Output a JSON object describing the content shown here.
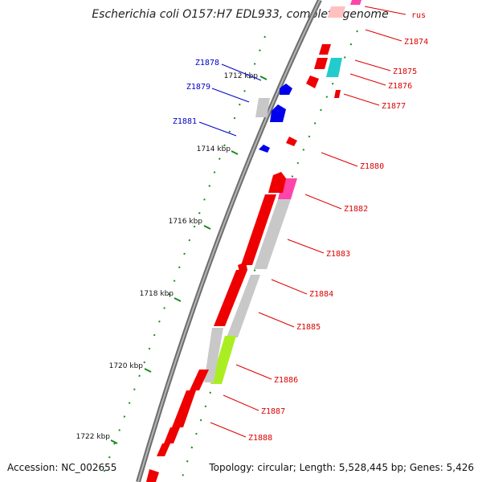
{
  "title": "Escherichia coli O157:H7 EDL933, complete genome",
  "footer": {
    "accession": "Accession: NC_002655",
    "topology": "Topology: circular; Length: 5,528,445 bp; Genes: 5,426"
  },
  "colors": {
    "backbone": "#808080",
    "tick": "#1a8a1a",
    "gene_red": "#ee0000",
    "gene_blue": "#0000ee",
    "gene_gray": "#c8c8c8",
    "gene_pink": "#ff44aa",
    "gene_cyan": "#22cccc",
    "gene_lime": "#aaee22",
    "label_red": "#dd0000",
    "label_blue": "#0000cc"
  },
  "ticks": [
    {
      "label": "1712 kbp"
    },
    {
      "label": "1714 kbp"
    },
    {
      "label": "1716 kbp"
    },
    {
      "label": "1718 kbp"
    },
    {
      "label": "1720 kbp"
    },
    {
      "label": "1722 kbp"
    }
  ],
  "genes_right": [
    {
      "label": "rus"
    },
    {
      "label": "Z1874"
    },
    {
      "label": "Z1875"
    },
    {
      "label": "Z1876"
    },
    {
      "label": "Z1877"
    },
    {
      "label": "Z1880"
    },
    {
      "label": "Z1882"
    },
    {
      "label": "Z1883"
    },
    {
      "label": "Z1884"
    },
    {
      "label": "Z1885"
    },
    {
      "label": "Z1886"
    },
    {
      "label": "Z1887"
    },
    {
      "label": "Z1888"
    }
  ],
  "genes_left": [
    {
      "label": "Z1878"
    },
    {
      "label": "Z1879"
    },
    {
      "label": "Z1881"
    }
  ]
}
